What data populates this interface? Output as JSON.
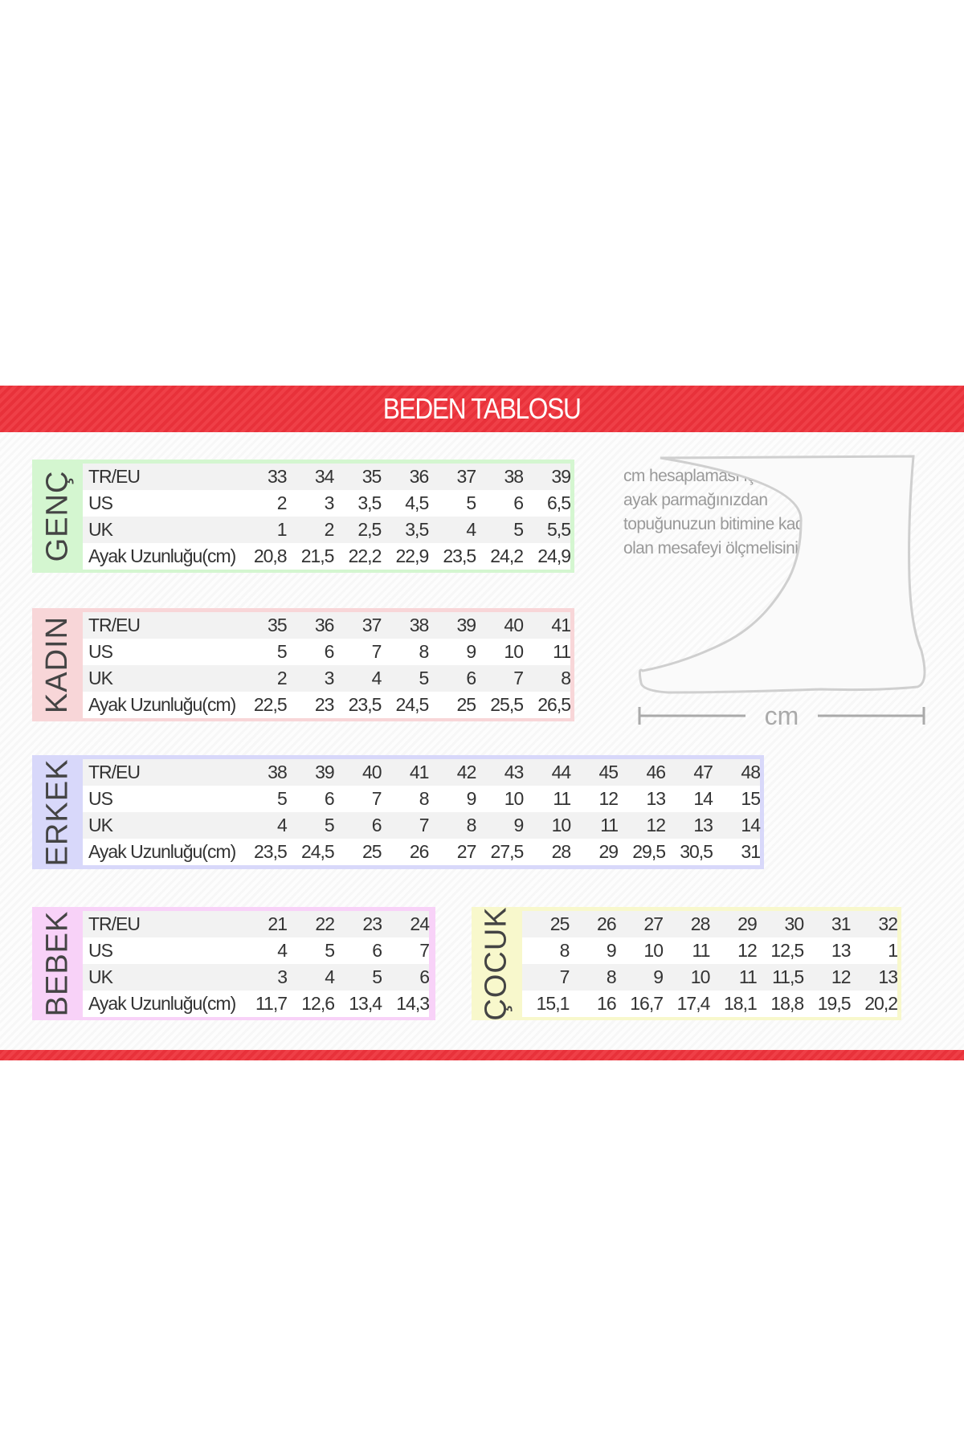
{
  "title": "BEDEN TABLOSU",
  "note": "cm hesaplaması için en uzun ayak parmağınızdan topuğunuzun bitimine kadar olan mesafeyi ölçmelisiniz.",
  "ruler_label": "cm",
  "colors": {
    "band": "#e8313a",
    "genc": "#d4f6d0",
    "kadin": "#f8d6d8",
    "erkek": "#d8d8fa",
    "bebek": "#f8d2f8",
    "cocuk": "#f8f8cc"
  },
  "tables": [
    {
      "id": "genc",
      "label": "GENÇ",
      "row_labels": [
        "TR/EU",
        "US",
        "UK",
        "Ayak Uzunluğu(cm)"
      ],
      "rows": [
        [
          "33",
          "34",
          "35",
          "36",
          "37",
          "38",
          "39"
        ],
        [
          "2",
          "3",
          "3,5",
          "4,5",
          "5",
          "6",
          "6,5"
        ],
        [
          "1",
          "2",
          "2,5",
          "3,5",
          "4",
          "5",
          "5,5"
        ],
        [
          "20,8",
          "21,5",
          "22,2",
          "22,9",
          "23,5",
          "24,2",
          "24,9"
        ]
      ]
    },
    {
      "id": "kadin",
      "label": "KADIN",
      "row_labels": [
        "TR/EU",
        "US",
        "UK",
        "Ayak Uzunluğu(cm)"
      ],
      "rows": [
        [
          "35",
          "36",
          "37",
          "38",
          "39",
          "40",
          "41"
        ],
        [
          "5",
          "6",
          "7",
          "8",
          "9",
          "10",
          "11"
        ],
        [
          "2",
          "3",
          "4",
          "5",
          "6",
          "7",
          "8"
        ],
        [
          "22,5",
          "23",
          "23,5",
          "24,5",
          "25",
          "25,5",
          "26,5"
        ]
      ]
    },
    {
      "id": "erkek",
      "label": "ERKEK",
      "row_labels": [
        "TR/EU",
        "US",
        "UK",
        "Ayak Uzunluğu(cm)"
      ],
      "rows": [
        [
          "38",
          "39",
          "40",
          "41",
          "42",
          "43",
          "44",
          "45",
          "46",
          "47",
          "48"
        ],
        [
          "5",
          "6",
          "7",
          "8",
          "9",
          "10",
          "11",
          "12",
          "13",
          "14",
          "15"
        ],
        [
          "4",
          "5",
          "6",
          "7",
          "8",
          "9",
          "10",
          "11",
          "12",
          "13",
          "14"
        ],
        [
          "23,5",
          "24,5",
          "25",
          "26",
          "27",
          "27,5",
          "28",
          "29",
          "29,5",
          "30,5",
          "31"
        ]
      ]
    },
    {
      "id": "bebek",
      "label": "BEBEK",
      "row_labels": [
        "TR/EU",
        "US",
        "UK",
        "Ayak Uzunluğu(cm)"
      ],
      "rows": [
        [
          "21",
          "22",
          "23",
          "24"
        ],
        [
          "4",
          "5",
          "6",
          "7"
        ],
        [
          "3",
          "4",
          "5",
          "6"
        ],
        [
          "11,7",
          "12,6",
          "13,4",
          "14,3"
        ]
      ]
    },
    {
      "id": "cocuk",
      "label": "ÇOCUK",
      "row_labels": [],
      "rows": [
        [
          "25",
          "26",
          "27",
          "28",
          "29",
          "30",
          "31",
          "32"
        ],
        [
          "8",
          "9",
          "10",
          "11",
          "12",
          "12,5",
          "13",
          "1"
        ],
        [
          "7",
          "8",
          "9",
          "10",
          "11",
          "11,5",
          "12",
          "13"
        ],
        [
          "15,1",
          "16",
          "16,7",
          "17,4",
          "18,1",
          "18,8",
          "19,5",
          "20,2"
        ]
      ]
    }
  ]
}
